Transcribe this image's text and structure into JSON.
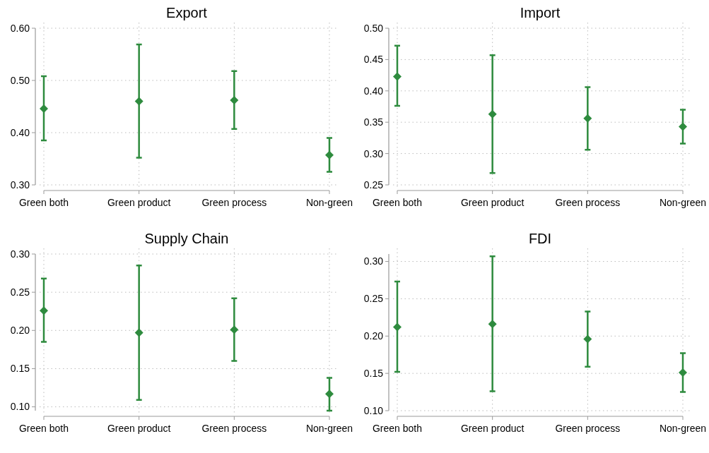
{
  "chart_data": [
    {
      "type": "scatter",
      "title": "Export",
      "categories": [
        "Green both",
        "Green product",
        "Green process",
        "Non-green"
      ],
      "series": [
        {
          "color": "#2e8b3e",
          "values": [
            0.446,
            0.46,
            0.462,
            0.357
          ],
          "errors": [
            [
              0.385,
              0.508
            ],
            [
              0.352,
              0.569
            ],
            [
              0.407,
              0.518
            ],
            [
              0.325,
              0.39
            ]
          ]
        }
      ],
      "ylim": [
        0.3,
        0.6
      ],
      "yticks": [
        {
          "value": 0.3,
          "label": "0.30"
        },
        {
          "value": 0.4,
          "label": "0.40"
        },
        {
          "value": 0.5,
          "label": "0.50"
        },
        {
          "value": 0.6,
          "label": "0.60"
        }
      ],
      "grid": true,
      "marker": "diamond"
    },
    {
      "type": "scatter",
      "title": "Import",
      "categories": [
        "Green both",
        "Green product",
        "Green process",
        "Non-green"
      ],
      "series": [
        {
          "color": "#2e8b3e",
          "values": [
            0.423,
            0.363,
            0.356,
            0.343
          ],
          "errors": [
            [
              0.376,
              0.472
            ],
            [
              0.269,
              0.457
            ],
            [
              0.306,
              0.406
            ],
            [
              0.316,
              0.37
            ]
          ]
        }
      ],
      "ylim": [
        0.25,
        0.5
      ],
      "yticks": [
        {
          "value": 0.25,
          "label": "0.25"
        },
        {
          "value": 0.3,
          "label": "0.30"
        },
        {
          "value": 0.35,
          "label": "0.35"
        },
        {
          "value": 0.4,
          "label": "0.40"
        },
        {
          "value": 0.45,
          "label": "0.45"
        },
        {
          "value": 0.5,
          "label": "0.50"
        }
      ],
      "grid": true,
      "marker": "diamond"
    },
    {
      "type": "scatter",
      "title": "Supply Chain",
      "categories": [
        "Green both",
        "Green product",
        "Green process",
        "Non-green"
      ],
      "series": [
        {
          "color": "#2e8b3e",
          "values": [
            0.226,
            0.197,
            0.201,
            0.117
          ],
          "errors": [
            [
              0.185,
              0.268
            ],
            [
              0.109,
              0.285
            ],
            [
              0.16,
              0.242
            ],
            [
              0.095,
              0.138
            ]
          ]
        }
      ],
      "ylim": [
        0.095,
        0.3
      ],
      "yticks": [
        {
          "value": 0.1,
          "label": "0.10"
        },
        {
          "value": 0.15,
          "label": "0.15"
        },
        {
          "value": 0.2,
          "label": "0.20"
        },
        {
          "value": 0.25,
          "label": "0.25"
        },
        {
          "value": 0.3,
          "label": "0.30"
        }
      ],
      "grid": true,
      "marker": "diamond"
    },
    {
      "type": "scatter",
      "title": "FDI",
      "categories": [
        "Green both",
        "Green product",
        "Green process",
        "Non-green"
      ],
      "series": [
        {
          "color": "#2e8b3e",
          "values": [
            0.212,
            0.216,
            0.196,
            0.151
          ],
          "errors": [
            [
              0.152,
              0.273
            ],
            [
              0.126,
              0.307
            ],
            [
              0.159,
              0.233
            ],
            [
              0.125,
              0.177
            ]
          ]
        }
      ],
      "ylim": [
        0.1,
        0.31
      ],
      "yticks": [
        {
          "value": 0.1,
          "label": "0.10"
        },
        {
          "value": 0.15,
          "label": "0.15"
        },
        {
          "value": 0.2,
          "label": "0.20"
        },
        {
          "value": 0.25,
          "label": "0.25"
        },
        {
          "value": 0.3,
          "label": "0.30"
        }
      ],
      "grid": true,
      "marker": "diamond"
    }
  ]
}
